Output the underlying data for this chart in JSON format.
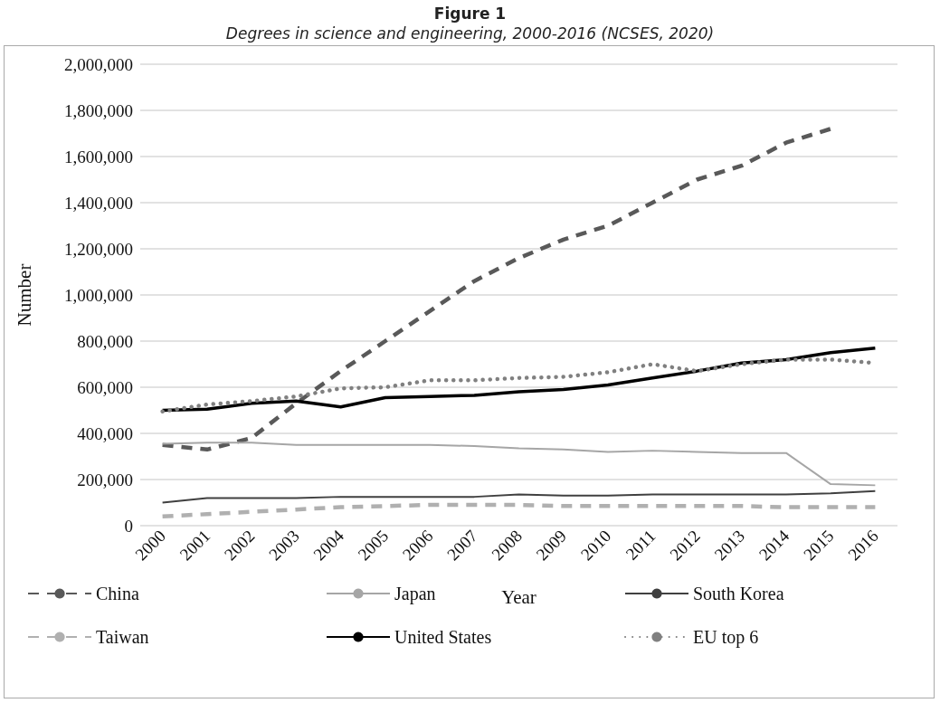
{
  "chart_data": {
    "type": "line",
    "title": "Figure 1",
    "subtitle": "Degrees in science and engineering, 2000-2016 (NCSES, 2020)",
    "xlabel": "Year",
    "ylabel": "Number",
    "categories": [
      "2000",
      "2001",
      "2002",
      "2003",
      "2004",
      "2005",
      "2006",
      "2007",
      "2008",
      "2009",
      "2010",
      "2011",
      "2012",
      "2013",
      "2014",
      "2015",
      "2016"
    ],
    "series": [
      {
        "name": "China",
        "color": "#595959",
        "line_style": "dashed",
        "values": [
          350000,
          330000,
          380000,
          530000,
          670000,
          800000,
          930000,
          1060000,
          1160000,
          1240000,
          1300000,
          1400000,
          1500000,
          1560000,
          1660000,
          1720000,
          null
        ]
      },
      {
        "name": "Japan",
        "color": "#a6a6a6",
        "line_style": "solid",
        "values": [
          355000,
          360000,
          360000,
          350000,
          350000,
          350000,
          350000,
          345000,
          335000,
          330000,
          320000,
          325000,
          320000,
          315000,
          315000,
          180000,
          175000
        ]
      },
      {
        "name": "South Korea",
        "color": "#404040",
        "line_style": "solid",
        "values": [
          100000,
          120000,
          120000,
          120000,
          125000,
          125000,
          125000,
          125000,
          135000,
          130000,
          130000,
          135000,
          135000,
          135000,
          135000,
          140000,
          150000
        ]
      },
      {
        "name": "Taiwan",
        "color": "#b0b0b0",
        "line_style": "dashed",
        "values": [
          40000,
          50000,
          60000,
          70000,
          80000,
          85000,
          90000,
          90000,
          90000,
          85000,
          85000,
          85000,
          85000,
          85000,
          80000,
          80000,
          80000
        ]
      },
      {
        "name": "United States",
        "color": "#000000",
        "line_style": "solid",
        "values": [
          500000,
          505000,
          530000,
          540000,
          515000,
          555000,
          560000,
          565000,
          580000,
          590000,
          610000,
          640000,
          670000,
          705000,
          720000,
          750000,
          770000
        ]
      },
      {
        "name": "EU top 6",
        "color": "#808080",
        "line_style": "dotted",
        "values": [
          495000,
          525000,
          540000,
          560000,
          595000,
          600000,
          630000,
          630000,
          640000,
          645000,
          665000,
          700000,
          670000,
          700000,
          720000,
          720000,
          705000
        ]
      }
    ],
    "ylim": [
      0,
      2000000
    ],
    "yticks": [
      {
        "value": 0,
        "label": "0"
      },
      {
        "value": 200000,
        "label": "200,000"
      },
      {
        "value": 400000,
        "label": "400,000"
      },
      {
        "value": 600000,
        "label": "600,000"
      },
      {
        "value": 800000,
        "label": "800,000"
      },
      {
        "value": 1000000,
        "label": "1,000,000"
      },
      {
        "value": 1200000,
        "label": "1,200,000"
      },
      {
        "value": 1400000,
        "label": "1,400,000"
      },
      {
        "value": 1600000,
        "label": "1,600,000"
      },
      {
        "value": 1800000,
        "label": "1,800,000"
      },
      {
        "value": 2000000,
        "label": "2,000,000"
      }
    ],
    "grid": "y",
    "legend": "bottom",
    "marker": "none"
  }
}
